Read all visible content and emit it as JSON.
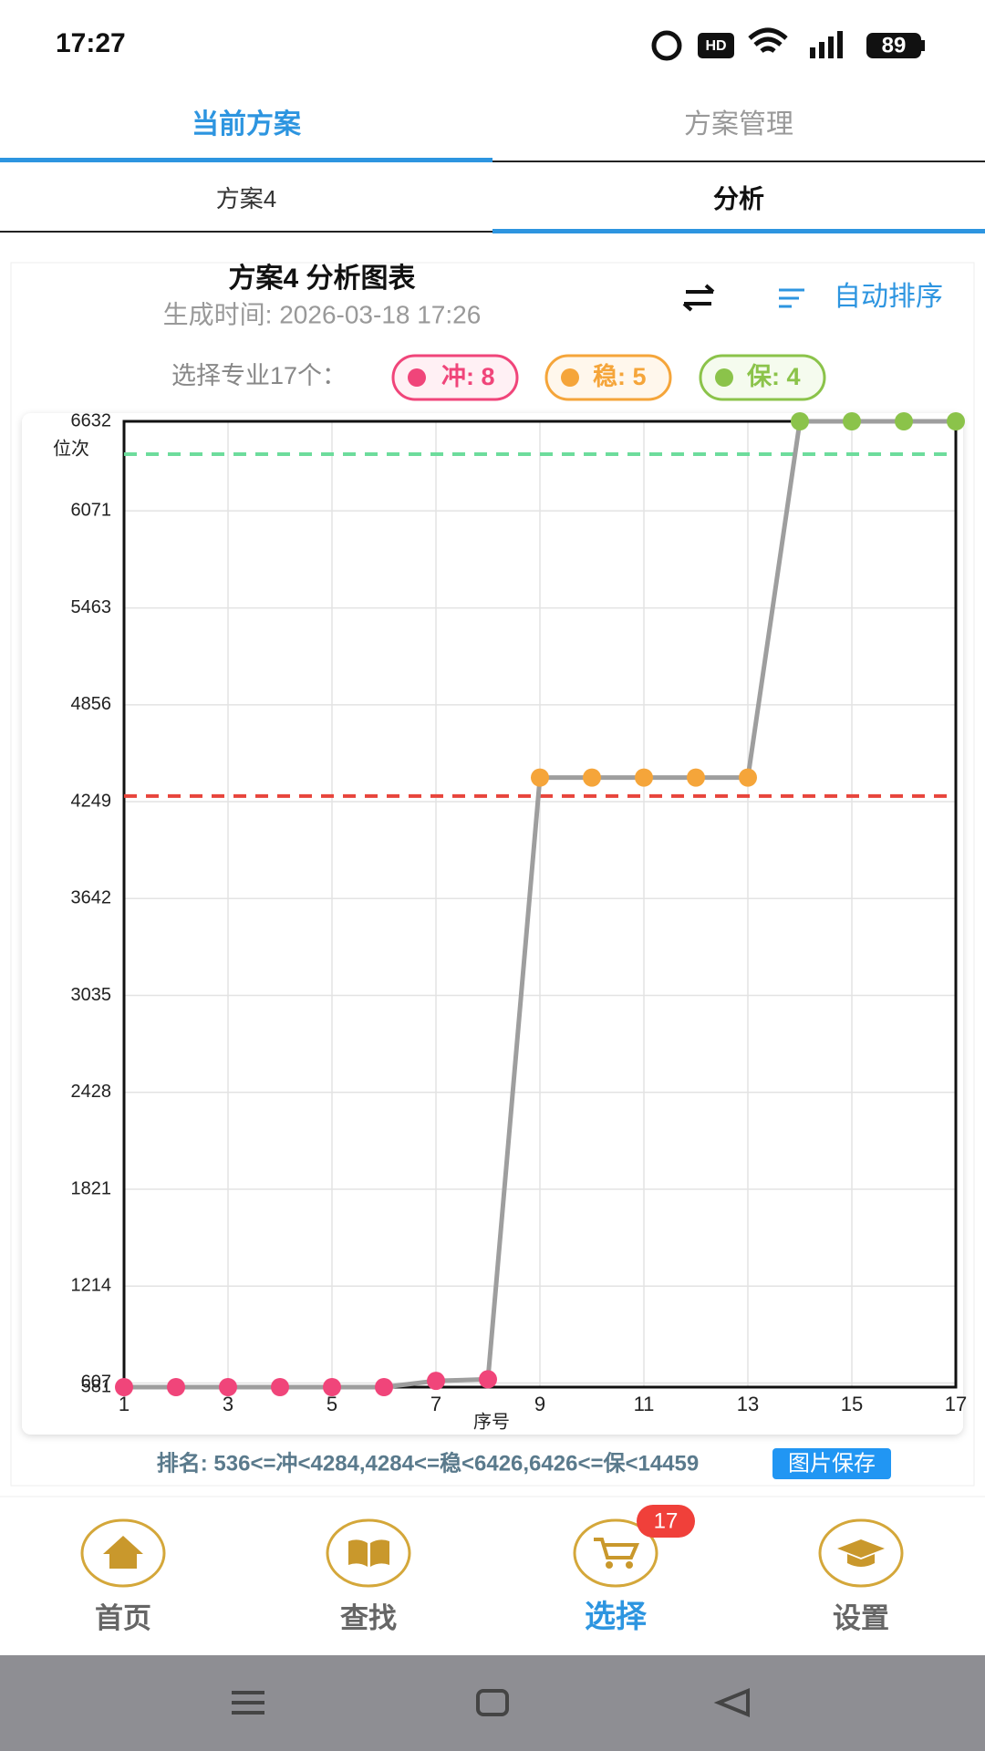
{
  "status_bar": {
    "time": "17:27",
    "battery": "89"
  },
  "tabs": [
    "当前方案",
    "方案管理"
  ],
  "sub_tabs": [
    "方案4",
    "分析"
  ],
  "panel": {
    "title": "方案4 分析图表",
    "generated": "生成时间: 2026-03-18 17:26",
    "sort": "自动排序",
    "selected": "选择专业17个：",
    "chips": [
      "冲: 8",
      "稳: 5",
      "保: 4"
    ]
  },
  "chart_data": {
    "type": "line",
    "ylabel": "位次",
    "xlabel": "序号",
    "x": [
      1,
      2,
      3,
      4,
      5,
      6,
      7,
      8,
      9,
      10,
      11,
      12,
      13,
      14,
      15,
      16,
      17
    ],
    "values": [
      581,
      581,
      581,
      581,
      581,
      581,
      620,
      630,
      4400,
      4400,
      4400,
      4400,
      4400,
      6632,
      6632,
      6632,
      6632
    ],
    "color": "#9e9e9e",
    "point_colors": [
      "#f0457a",
      "#f0457a",
      "#f0457a",
      "#f0457a",
      "#f0457a",
      "#f0457a",
      "#f0457a",
      "#f0457a",
      "#f5a53a",
      "#f5a53a",
      "#f5a53a",
      "#f5a53a",
      "#f5a53a",
      "#8bc34a",
      "#8bc34a",
      "#8bc34a",
      "#8bc34a"
    ],
    "ref_lines": [
      {
        "value": 4284,
        "color": "#e8453c"
      },
      {
        "value": 6426,
        "color": "#6ddc9c"
      }
    ],
    "xlim": [
      1,
      17
    ],
    "xticks": [
      1,
      3,
      5,
      7,
      9,
      11,
      13,
      15,
      17
    ],
    "ylim": [
      581,
      6632
    ],
    "yticks": [
      581,
      607,
      1214,
      1821,
      2428,
      3035,
      3642,
      4249,
      4856,
      5463,
      6071,
      6632
    ],
    "grid": true
  },
  "footer": {
    "ranking": "排名: 536<=冲<4284,4284<=稳<6426,6426<=保<14459",
    "save_button": "图片保存"
  },
  "nav": {
    "items": [
      "首页",
      "查找",
      "选择",
      "设置"
    ],
    "badge": "17"
  }
}
